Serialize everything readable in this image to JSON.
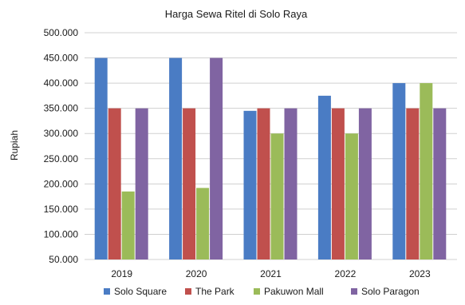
{
  "chart_data": {
    "type": "bar",
    "title": "Harga Sewa Ritel di Solo Raya",
    "xlabel": "",
    "ylabel": "Rupiah",
    "categories": [
      "2019",
      "2020",
      "2021",
      "2022",
      "2023"
    ],
    "ylim": [
      50000,
      500000
    ],
    "yticks": [
      50000,
      100000,
      150000,
      200000,
      250000,
      300000,
      350000,
      400000,
      450000,
      500000
    ],
    "ytick_labels": [
      "50.000",
      "100.000",
      "150.000",
      "200.000",
      "250.000",
      "300.000",
      "350.000",
      "400.000",
      "450.000",
      "500.000"
    ],
    "grid": true,
    "legend_position": "bottom",
    "series": [
      {
        "name": "Solo Square",
        "color": "#4a7cc4",
        "values": [
          450000,
          450000,
          345000,
          375000,
          400000
        ]
      },
      {
        "name": "The Park",
        "color": "#c0504d",
        "values": [
          350000,
          350000,
          350000,
          350000,
          350000
        ]
      },
      {
        "name": "Pakuwon Mall",
        "color": "#9bbb59",
        "values": [
          185000,
          192000,
          300000,
          300000,
          400000
        ]
      },
      {
        "name": "Solo Paragon",
        "color": "#8064a2",
        "values": [
          350000,
          450000,
          350000,
          350000,
          350000
        ]
      }
    ]
  }
}
